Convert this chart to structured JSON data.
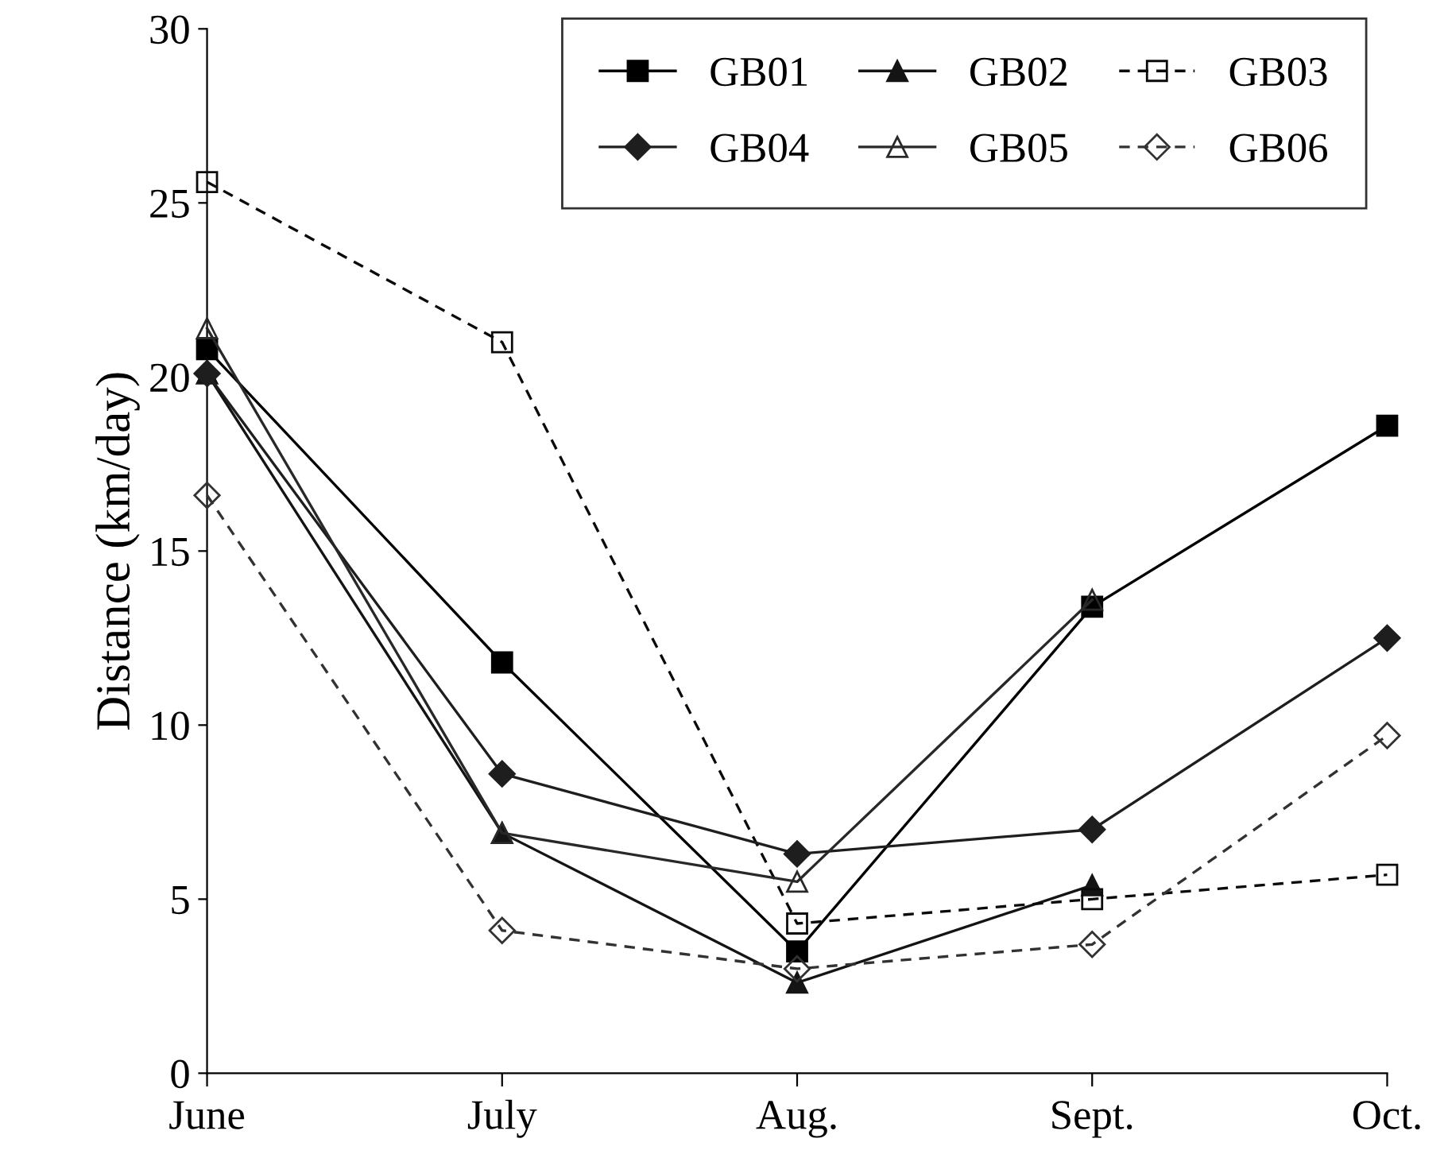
{
  "chart_data": {
    "type": "line",
    "ylabel": "Distance (km/day)",
    "categories": [
      "June",
      "July",
      "Aug.",
      "Sept.",
      "Oct."
    ],
    "ylim": [
      0,
      30
    ],
    "yticks": [
      0,
      5,
      10,
      15,
      20,
      25,
      30
    ],
    "grid": false,
    "legend": "top right",
    "series": [
      {
        "name": "GB01",
        "color": "#000000",
        "marker": "square",
        "line_style": "solid",
        "values": [
          20.8,
          11.8,
          3.5,
          13.4,
          18.6
        ]
      },
      {
        "name": "GB02",
        "color": "#141414",
        "marker": "triangle",
        "line_style": "solid",
        "values": [
          20.1,
          6.9,
          2.6,
          5.4,
          null
        ]
      },
      {
        "name": "GB03",
        "color": "#0a0a0a",
        "marker": "square",
        "line_style": "dashed",
        "values": [
          25.6,
          21.0,
          4.3,
          5.0,
          5.7
        ]
      },
      {
        "name": "GB04",
        "color": "#1e1e1e",
        "marker": "diamond",
        "line_style": "solid",
        "values": [
          20.1,
          8.6,
          6.3,
          7.0,
          12.5
        ]
      },
      {
        "name": "GB05",
        "color": "#282828",
        "marker": "triangle",
        "line_style": "solid",
        "values": [
          21.4,
          6.9,
          5.5,
          13.6,
          null
        ]
      },
      {
        "name": "GB06",
        "color": "#323232",
        "marker": "diamond",
        "line_style": "dashed",
        "values": [
          16.6,
          4.1,
          3.0,
          3.7,
          9.7
        ]
      }
    ]
  }
}
